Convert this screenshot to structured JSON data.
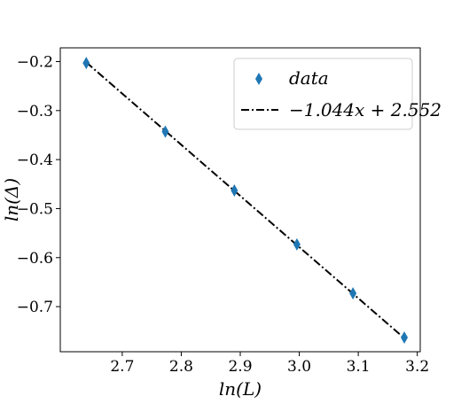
{
  "chart_data": {
    "type": "scatter",
    "xlabel": "ln(L)",
    "ylabel": "ln(Δ)",
    "xlim": [
      2.595,
      3.205
    ],
    "ylim": [
      -0.792,
      -0.172
    ],
    "xticks": [
      2.7,
      2.8,
      2.9,
      3.0,
      3.1,
      3.2
    ],
    "xtick_labels": [
      "2.7",
      "2.8",
      "2.9",
      "3.0",
      "3.1",
      "3.2"
    ],
    "yticks": [
      -0.2,
      -0.3,
      -0.4,
      -0.5,
      -0.6,
      -0.7
    ],
    "ytick_labels": [
      "−0.2",
      "−0.3",
      "−0.4",
      "−0.5",
      "−0.6",
      "−0.7"
    ],
    "grid": false,
    "legend_position": "top-right",
    "series": [
      {
        "name": "data",
        "kind": "scatter",
        "marker": "thin-diamond",
        "color": "#1f77b4",
        "x": [
          2.639,
          2.773,
          2.89,
          2.996,
          3.091,
          3.178
        ],
        "y": [
          -0.203,
          -0.343,
          -0.463,
          -0.573,
          -0.673,
          -0.763
        ]
      },
      {
        "name": "−1.044x + 2.552",
        "kind": "line",
        "style": "dash-dot",
        "color": "#000000",
        "slope": -1.044,
        "intercept": 2.552,
        "x_range": [
          2.639,
          3.178
        ]
      }
    ]
  }
}
